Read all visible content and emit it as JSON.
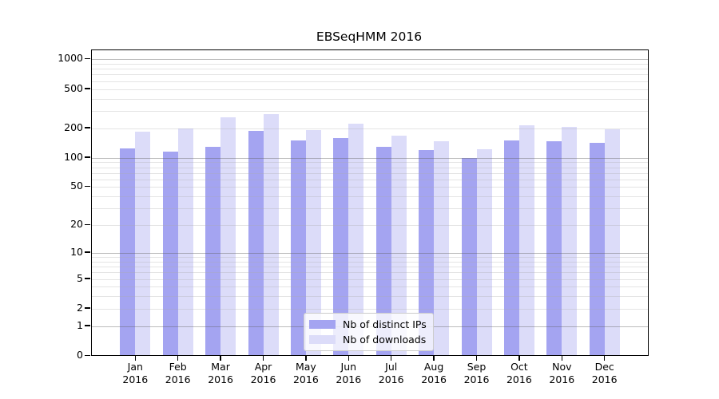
{
  "chart_data": {
    "type": "bar",
    "title": "EBSeqHMM 2016",
    "categories": [
      "Jan 2016",
      "Feb 2016",
      "Mar 2016",
      "Apr 2016",
      "May 2016",
      "Jun 2016",
      "Jul 2016",
      "Aug 2016",
      "Sep 2016",
      "Oct 2016",
      "Nov 2016",
      "Dec 2016"
    ],
    "series": [
      {
        "name": "Nb of distinct IPs",
        "color": "#a4a4f1",
        "values": [
          125,
          116,
          130,
          187,
          151,
          160,
          130,
          121,
          100,
          151,
          147,
          142
        ]
      },
      {
        "name": "Nb of downloads",
        "color": "#dcdcf9",
        "values": [
          184,
          199,
          258,
          277,
          191,
          224,
          168,
          147,
          122,
          213,
          206,
          196
        ]
      }
    ],
    "y_ticks": [
      0,
      1,
      2,
      5,
      10,
      20,
      50,
      100,
      200,
      500,
      1000
    ],
    "y_scale": "log1p",
    "ylim": [
      0,
      1240
    ],
    "xlabel": "",
    "ylabel": "",
    "grid": true,
    "legend_position": "lower center",
    "axis_color": "#000000",
    "major_grid_color": "#bcbcbc",
    "minor_grid_color": "#e8e8e8",
    "text_color": "#000000",
    "background_color": "#ffffff"
  }
}
